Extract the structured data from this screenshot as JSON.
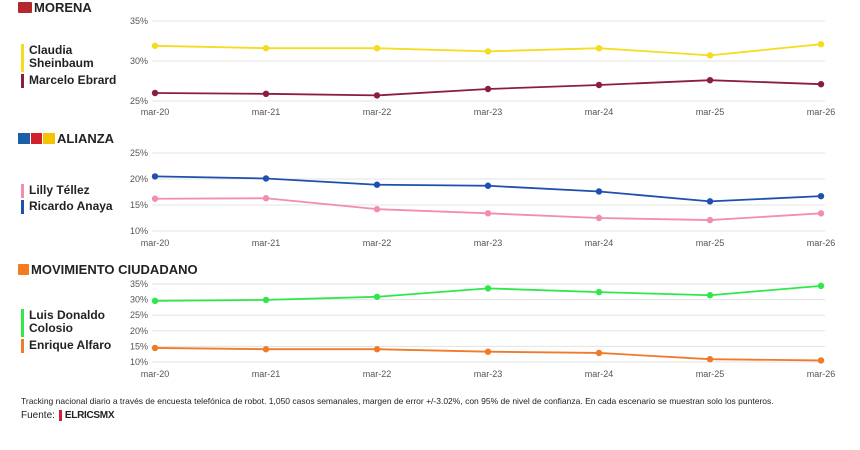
{
  "colors": {
    "morena_logo": "#b3282d",
    "alianza_logo": "#1a5fa8",
    "mc_logo": "#f47b20"
  },
  "panels": [
    {
      "title": "MORENA",
      "logo_icon": "morena-logo-icon",
      "legend": [
        "Claudia Sheinbaum",
        "Marcelo Ebrard"
      ]
    },
    {
      "title": "ALIANZA",
      "logo_icon": "alianza-logos-icon",
      "legend": [
        "Lilly Téllez",
        "Ricardo Anaya"
      ]
    },
    {
      "title": "MOVIMIENTO CIUDADANO",
      "logo_icon": "mc-logo-icon",
      "legend": [
        "Luis Donaldo Colosio",
        "Enrique Alfaro"
      ]
    }
  ],
  "chart_data": [
    {
      "type": "line",
      "title": "MORENA",
      "x": [
        "mar-20",
        "mar-21",
        "mar-22",
        "mar-23",
        "mar-24",
        "mar-25",
        "mar-26"
      ],
      "ylim": [
        25,
        35
      ],
      "yticks": [
        "25%",
        "30%",
        "35%"
      ],
      "grid": true,
      "legend_placement": "left",
      "series": [
        {
          "name": "Claudia Sheinbaum",
          "color": "#f5dc1f",
          "values": [
            31.9,
            31.6,
            31.6,
            31.2,
            31.6,
            30.7,
            32.1
          ]
        },
        {
          "name": "Marcelo Ebrard",
          "color": "#8b1e3f",
          "values": [
            26.0,
            25.9,
            25.7,
            26.5,
            27.0,
            27.6,
            27.1
          ]
        }
      ]
    },
    {
      "type": "line",
      "title": "ALIANZA",
      "x": [
        "mar-20",
        "mar-21",
        "mar-22",
        "mar-23",
        "mar-24",
        "mar-25",
        "mar-26"
      ],
      "ylim": [
        10,
        25
      ],
      "yticks": [
        "10%",
        "15%",
        "20%",
        "25%"
      ],
      "grid": true,
      "legend_placement": "left",
      "series": [
        {
          "name": "Lilly Téllez",
          "color": "#f28cb1",
          "values": [
            16.2,
            16.3,
            14.2,
            13.4,
            12.5,
            12.1,
            13.4
          ]
        },
        {
          "name": "Ricardo Anaya",
          "color": "#1f4fb0",
          "values": [
            20.5,
            20.1,
            18.9,
            18.7,
            17.6,
            15.7,
            16.7
          ]
        }
      ]
    },
    {
      "type": "line",
      "title": "MOVIMIENTO CIUDADANO",
      "x": [
        "mar-20",
        "mar-21",
        "mar-22",
        "mar-23",
        "mar-24",
        "mar-25",
        "mar-26"
      ],
      "ylim": [
        10,
        35
      ],
      "yticks": [
        "10%",
        "15%",
        "20%",
        "25%",
        "30%",
        "35%"
      ],
      "grid": true,
      "legend_placement": "left",
      "series": [
        {
          "name": "Luis Donaldo Colosio",
          "color": "#2ee84a",
          "values": [
            29.6,
            29.9,
            30.9,
            33.6,
            32.4,
            31.4,
            34.4
          ]
        },
        {
          "name": "Enrique Alfaro",
          "color": "#f07a2a",
          "values": [
            14.5,
            14.1,
            14.1,
            13.3,
            12.9,
            10.9,
            10.5
          ]
        }
      ]
    }
  ],
  "footnote": "Tracking nacional diario a través de encuesta telefónica de robot. 1,050 casos semanales, margen de error +/-3.02%, con 95% de nivel de confianza. En cada escenario se muestran solo los punteros.",
  "source_label": "Fuente:",
  "brand": "ELRICSMX",
  "brand_icon": "polimetrics-logo-icon"
}
